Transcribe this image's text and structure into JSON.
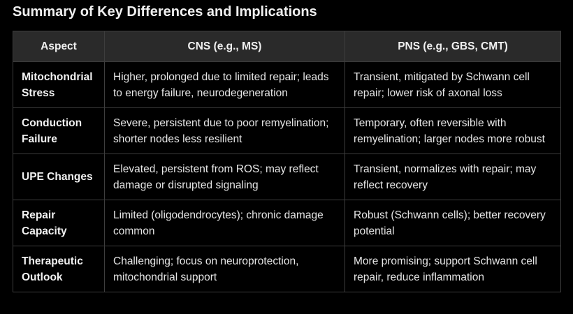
{
  "title": "Summary of Key Differences and Implications",
  "table": {
    "headers": [
      "Aspect",
      "CNS (e.g., MS)",
      "PNS (e.g., GBS, CMT)"
    ],
    "rows": [
      {
        "aspect": "Mitochondrial Stress",
        "cns": "Higher, prolonged due to limited repair; leads to energy failure, neurodegeneration",
        "pns": "Transient, mitigated by Schwann cell repair; lower risk of axonal loss"
      },
      {
        "aspect": "Conduction Failure",
        "cns": "Severe, persistent due to poor remyelination; shorter nodes less resilient",
        "pns": "Temporary, often reversible with remyelination; larger nodes more robust"
      },
      {
        "aspect": "UPE Changes",
        "cns": "Elevated, persistent from ROS; may reflect damage or disrupted signaling",
        "pns": "Transient, normalizes with repair; may reflect recovery"
      },
      {
        "aspect": "Repair Capacity",
        "cns": "Limited (oligodendrocytes); chronic damage common",
        "pns": "Robust (Schwann cells); better recovery potential"
      },
      {
        "aspect": "Therapeutic Outlook",
        "cns": "Challenging; focus on neuroprotection, mitochondrial support",
        "pns": "More promising; support Schwann cell repair, reduce inflammation"
      }
    ]
  }
}
